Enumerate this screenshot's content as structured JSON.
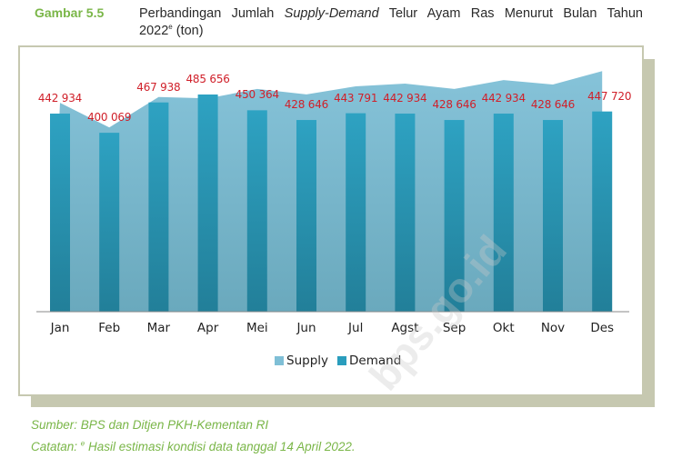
{
  "header": {
    "figure_label": "Gambar 5.5",
    "title_pre": "Perbandingan Jumlah ",
    "title_italic": "Supply-Demand",
    "title_post": " Telur Ayam Ras Menurut Bulan Tahun",
    "title_line2_year": "2022",
    "title_line2_sup": "e",
    "title_line2_unit": " (ton)"
  },
  "legend": {
    "supply_label": "Supply",
    "demand_label": "Demand",
    "supply_color": "#7fbfd6",
    "demand_color": "#2a9dbd"
  },
  "footer": {
    "source": "Sumber: BPS dan  Ditjen PKH-Kementan RI",
    "note_prefix": "Catatan: ",
    "note_sup": "e",
    "note_text": " Hasil estimasi kondisi data tanggal 14 April 2022."
  },
  "watermark": "bps.go.id",
  "chart_data": {
    "type": "bar",
    "title": "Perbandingan Jumlah Supply-Demand Telur Ayam Ras Menurut Bulan Tahun 2022 (ton)",
    "xlabel": "",
    "ylabel": "ton",
    "categories": [
      "Jan",
      "Feb",
      "Mar",
      "Apr",
      "Mei",
      "Jun",
      "Jul",
      "Agst",
      "Sep",
      "Okt",
      "Nov",
      "Des"
    ],
    "series": [
      {
        "name": "Supply",
        "type": "area",
        "values": [
          467000,
          412000,
          480000,
          477000,
          498000,
          486000,
          504000,
          510000,
          498000,
          518000,
          508000,
          538000
        ],
        "note": "estimated from area height; unlabeled"
      },
      {
        "name": "Demand",
        "type": "bar",
        "values": [
          442934,
          400069,
          467938,
          485656,
          450364,
          428646,
          443791,
          442934,
          428646,
          442934,
          428646,
          447720
        ],
        "labels": [
          "442 934",
          "400 069",
          "467 938",
          "485 656",
          "450 364",
          "428 646",
          "443 791",
          "442 934",
          "428 646",
          "442 934",
          "428 646",
          "447 720"
        ]
      }
    ],
    "ylim": [
      0,
      560000
    ],
    "grid": false,
    "legend_position": "bottom"
  }
}
